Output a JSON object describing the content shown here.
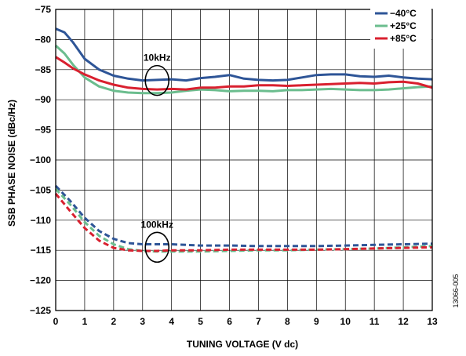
{
  "chart_data": {
    "type": "line",
    "xlabel": "TUNING VOLTAGE (V dc)",
    "ylabel": "SSB PHASE NOISE (dBc/Hz)",
    "xlim": [
      0,
      13
    ],
    "ylim": [
      -125,
      -75
    ],
    "x_ticks": [
      "0",
      "1",
      "2",
      "3",
      "4",
      "5",
      "6",
      "7",
      "8",
      "9",
      "10",
      "11",
      "12",
      "13"
    ],
    "y_ticks": [
      "−75",
      "−80",
      "−85",
      "−90",
      "−95",
      "−100",
      "−105",
      "−110",
      "−115",
      "−120",
      "−125"
    ],
    "grid": true,
    "legend_position": "top-right",
    "annotations": [
      {
        "text": "10kHz",
        "x": 3.5,
        "y": -86.8
      },
      {
        "text": "100kHz",
        "x": 3.5,
        "y": -114.5
      }
    ],
    "series": [
      {
        "name": "−40°C",
        "offset": "10kHz",
        "color": "#2e5597",
        "style": "solid",
        "x": [
          0,
          0.3,
          0.6,
          1,
          1.5,
          2,
          2.5,
          3,
          3.5,
          4,
          4.5,
          5,
          5.5,
          6,
          6.5,
          7,
          7.5,
          8,
          8.5,
          9,
          9.5,
          10,
          10.5,
          11,
          11.5,
          12,
          12.5,
          13
        ],
        "y": [
          -78.2,
          -78.8,
          -80.5,
          -83.2,
          -85,
          -86,
          -86.5,
          -86.8,
          -86.7,
          -86.6,
          -86.8,
          -86.4,
          -86.2,
          -85.9,
          -86.5,
          -86.7,
          -86.8,
          -86.7,
          -86.3,
          -85.9,
          -85.8,
          -85.8,
          -86.1,
          -86.2,
          -86.0,
          -86.3,
          -86.5,
          -86.6
        ]
      },
      {
        "name": "+25°C",
        "offset": "10kHz",
        "color": "#6bbd8e",
        "style": "solid",
        "x": [
          0,
          0.3,
          0.6,
          1,
          1.5,
          2,
          2.5,
          3,
          3.5,
          4,
          4.5,
          5,
          5.5,
          6,
          6.5,
          7,
          7.5,
          8,
          8.5,
          9,
          9.5,
          10,
          10.5,
          11,
          11.5,
          12,
          12.5,
          13
        ],
        "y": [
          -81,
          -82.3,
          -84.2,
          -86.3,
          -87.8,
          -88.5,
          -88.8,
          -88.9,
          -88.9,
          -88.8,
          -88.5,
          -88.3,
          -88.4,
          -88.6,
          -88.5,
          -88.5,
          -88.6,
          -88.4,
          -88.4,
          -88.3,
          -88.2,
          -88.3,
          -88.4,
          -88.4,
          -88.3,
          -88.1,
          -87.9,
          -87.8
        ]
      },
      {
        "name": "+85°C",
        "offset": "10kHz",
        "color": "#d9202f",
        "style": "solid",
        "x": [
          0,
          0.3,
          0.6,
          1,
          1.5,
          2,
          2.5,
          3,
          3.5,
          4,
          4.5,
          5,
          5.5,
          6,
          6.5,
          7,
          7.5,
          8,
          8.5,
          9,
          9.5,
          10,
          10.5,
          11,
          11.5,
          12,
          12.5,
          13
        ],
        "y": [
          -82.9,
          -83.8,
          -84.8,
          -85.8,
          -86.8,
          -87.5,
          -88,
          -88.2,
          -88.3,
          -88.2,
          -88.3,
          -88.0,
          -88.0,
          -87.8,
          -87.8,
          -87.6,
          -87.6,
          -87.7,
          -87.6,
          -87.5,
          -87.4,
          -87.3,
          -87.2,
          -87.3,
          -87.1,
          -87.0,
          -87.3,
          -88.0
        ]
      },
      {
        "name": "−40°C",
        "offset": "100kHz",
        "color": "#2e5597",
        "style": "dashed",
        "x": [
          0,
          0.5,
          1,
          1.5,
          2,
          2.5,
          3,
          3.5,
          4,
          5,
          6,
          7,
          8,
          9,
          10,
          11,
          12,
          13
        ],
        "y": [
          -104.3,
          -106.8,
          -109.6,
          -111.8,
          -113.1,
          -113.8,
          -114.0,
          -114.0,
          -114.0,
          -114.2,
          -114.2,
          -114.3,
          -114.3,
          -114.3,
          -114.2,
          -114.1,
          -114.0,
          -113.9
        ]
      },
      {
        "name": "+25°C",
        "offset": "100kHz",
        "color": "#6bbd8e",
        "style": "dashed",
        "x": [
          0,
          0.5,
          1,
          1.5,
          2,
          2.5,
          3,
          3.5,
          4,
          5,
          6,
          7,
          8,
          9,
          10,
          11,
          12,
          13
        ],
        "y": [
          -104.8,
          -107.4,
          -110.3,
          -112.6,
          -114.0,
          -114.8,
          -115.1,
          -115.2,
          -115.2,
          -115.2,
          -115.1,
          -115.0,
          -115.0,
          -114.9,
          -114.8,
          -114.7,
          -114.5,
          -114.3
        ]
      },
      {
        "name": "+85°C",
        "offset": "100kHz",
        "color": "#d9202f",
        "style": "dashed",
        "x": [
          0,
          0.5,
          1,
          1.5,
          2,
          2.5,
          3,
          3.5,
          4,
          5,
          6,
          7,
          8,
          9,
          10,
          11,
          12,
          13
        ],
        "y": [
          -105.6,
          -108.5,
          -111.3,
          -113.4,
          -114.6,
          -115.0,
          -115.1,
          -115.1,
          -115.0,
          -115.0,
          -114.9,
          -114.9,
          -114.9,
          -114.9,
          -114.8,
          -114.7,
          -114.6,
          -114.5
        ]
      }
    ],
    "legend": [
      {
        "name": "−40°C",
        "color": "#2e5597"
      },
      {
        "name": "+25°C",
        "color": "#6bbd8e"
      },
      {
        "name": "+85°C",
        "color": "#d9202f"
      }
    ]
  },
  "figure_id": "13066-005"
}
